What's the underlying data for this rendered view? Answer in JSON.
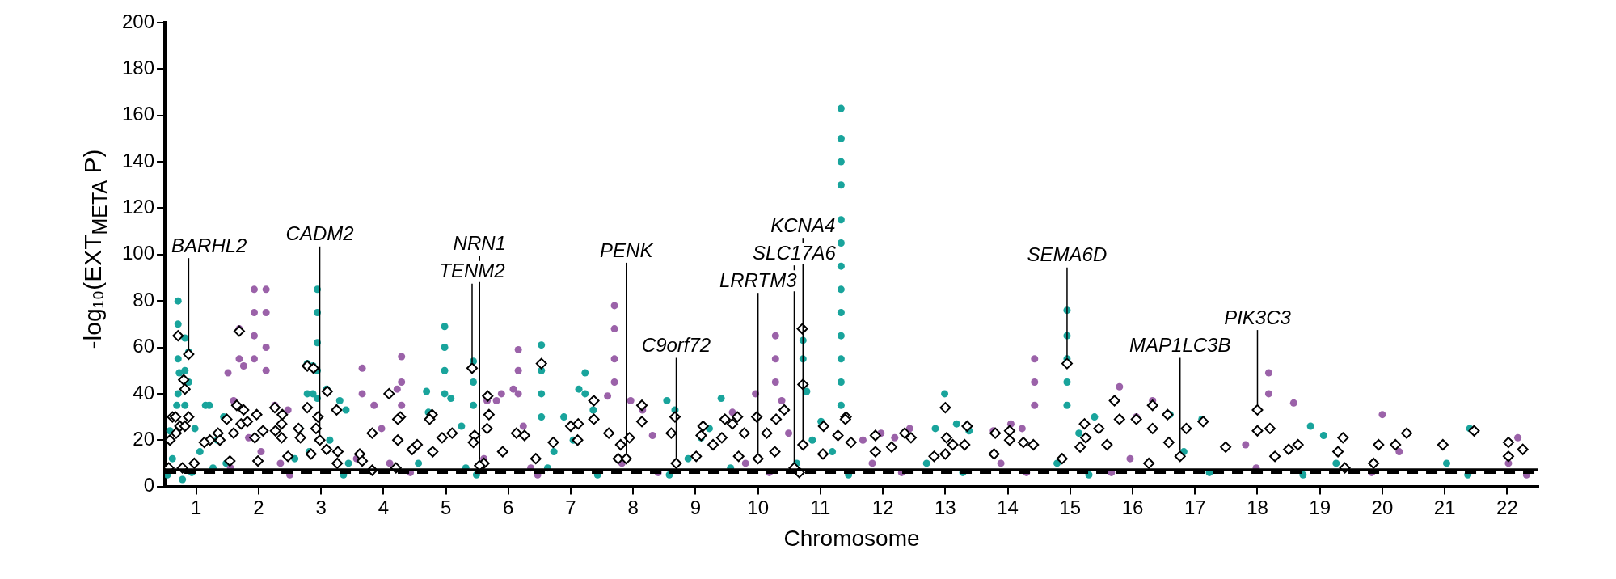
{
  "chart_data": {
    "type": "scatter",
    "xlabel": "Chromosome",
    "ylabel": "-log₁₀(EXT$_{META}$ P)",
    "xlim": [
      0.5,
      22.5
    ],
    "xticks": [
      1,
      2,
      3,
      4,
      5,
      6,
      7,
      8,
      9,
      10,
      11,
      12,
      13,
      14,
      15,
      16,
      17,
      18,
      19,
      20,
      21,
      22
    ],
    "ylim": [
      0,
      200
    ],
    "yticks": [
      0,
      20,
      40,
      60,
      80,
      100,
      120,
      140,
      160,
      180,
      200
    ],
    "grid": false,
    "legend": false,
    "series": [
      {
        "color": "#19a49c",
        "marker": "circle",
        "x": [
          0.71,
          0.71,
          0.71,
          0.71,
          0.82,
          0.82,
          0.82,
          0.88,
          0.88,
          0.73,
          0.69,
          0.98,
          0.58,
          1.15,
          1.21,
          1.44,
          1.34,
          1.06,
          0.62,
          0.54,
          0.78,
          0.93,
          1.27,
          1.48,
          2.94,
          2.94,
          2.94,
          2.94,
          2.94,
          2.78,
          2.78,
          2.87,
          2.87,
          3.09,
          3.3,
          3.4,
          2.66,
          2.58,
          2.81,
          3.14,
          3.44,
          3.36,
          4.98,
          4.98,
          4.98,
          4.98,
          4.69,
          5.08,
          5.25,
          4.72,
          5.44,
          5.44,
          5.44,
          4.56,
          4.77,
          5.32,
          5.49,
          6.53,
          6.53,
          6.53,
          6.53,
          7.23,
          7.23,
          7.13,
          7.36,
          6.89,
          6.73,
          7.04,
          6.63,
          7.43,
          8.54,
          8.67,
          9.41,
          9.22,
          9.09,
          8.88,
          9.56,
          8.58,
          11.33,
          11.33,
          11.33,
          11.33,
          11.33,
          11.33,
          11.33,
          11.33,
          11.33,
          11.33,
          11.33,
          11.33,
          11.33,
          10.72,
          10.72,
          10.78,
          11.01,
          10.87,
          11.19,
          10.62,
          11.45,
          12.99,
          13.18,
          12.84,
          13.38,
          12.7,
          13.28,
          14.95,
          14.95,
          14.95,
          14.95,
          14.95,
          15.39,
          15.14,
          14.79,
          15.3,
          16.6,
          17.11,
          16.82,
          17.23,
          18.85,
          19.06,
          19.26,
          18.73,
          21.4,
          21.03,
          21.37
        ],
        "values": [
          80,
          70,
          55,
          40,
          64,
          50,
          35,
          58,
          45,
          49,
          35,
          25,
          24,
          35,
          35,
          30,
          20,
          15,
          12,
          5,
          3,
          6,
          8,
          10,
          85,
          75,
          62,
          50,
          38,
          53,
          40,
          52,
          40,
          42,
          37,
          33,
          25,
          12,
          15,
          20,
          10,
          5,
          69,
          60,
          50,
          40,
          41,
          38,
          26,
          32,
          54,
          45,
          35,
          10,
          15,
          8,
          5,
          61,
          50,
          40,
          30,
          49,
          40,
          42,
          33,
          30,
          15,
          20,
          8,
          5,
          37,
          33,
          38,
          25,
          21,
          12,
          8,
          5,
          163,
          150,
          140,
          130,
          115,
          105,
          95,
          85,
          75,
          65,
          55,
          45,
          35,
          63,
          55,
          41,
          28,
          20,
          15,
          10,
          5,
          40,
          27,
          25,
          24,
          10,
          6,
          76,
          65,
          55,
          45,
          35,
          30,
          23,
          10,
          5,
          31,
          29,
          15,
          6,
          26,
          22,
          10,
          5,
          25,
          10,
          5
        ]
      },
      {
        "color": "#9b62a9",
        "marker": "circle",
        "x": [
          1.93,
          1.93,
          1.93,
          1.93,
          2.12,
          2.12,
          2.12,
          2.12,
          1.69,
          1.69,
          1.76,
          1.51,
          1.6,
          2.26,
          2.47,
          1.84,
          2.04,
          2.35,
          1.55,
          2.5,
          4.29,
          4.29,
          4.29,
          3.66,
          3.66,
          3.85,
          3.97,
          4.22,
          3.57,
          4.1,
          4.43,
          6.16,
          6.16,
          6.16,
          5.89,
          5.66,
          5.81,
          6.08,
          6.24,
          5.61,
          6.36,
          6.47,
          7.7,
          7.7,
          7.7,
          7.7,
          7.96,
          7.59,
          8.31,
          8.15,
          7.82,
          8.4,
          10.28,
          10.28,
          10.28,
          9.96,
          9.59,
          10.38,
          10.49,
          9.8,
          10.18,
          12.43,
          11.68,
          12.19,
          11.97,
          11.83,
          12.3,
          14.43,
          14.43,
          14.43,
          14.05,
          14.23,
          13.77,
          13.89,
          14.3,
          15.79,
          16.32,
          16.06,
          15.96,
          15.66,
          18.18,
          18.18,
          18.58,
          17.81,
          17.98,
          20.0,
          20.27,
          19.83,
          22.17,
          22.02,
          22.31
        ],
        "values": [
          85,
          75,
          65,
          55,
          85,
          75,
          60,
          50,
          68,
          55,
          52,
          49,
          37,
          35,
          33,
          21,
          15,
          10,
          8,
          5,
          56,
          45,
          35,
          51,
          40,
          35,
          25,
          42,
          12,
          10,
          6,
          59,
          50,
          40,
          40,
          37,
          37,
          42,
          26,
          12,
          8,
          5,
          78,
          68,
          55,
          45,
          37,
          39,
          22,
          33,
          10,
          6,
          65,
          55,
          45,
          40,
          32,
          37,
          23,
          10,
          6,
          25,
          20,
          21,
          23,
          10,
          6,
          55,
          45,
          35,
          27,
          25,
          24,
          10,
          6,
          43,
          37,
          30,
          12,
          6,
          49,
          40,
          36,
          18,
          8,
          31,
          15,
          6,
          21,
          10,
          5
        ]
      },
      {
        "color": "#ffffff",
        "marker": "diamond",
        "x": [
          0.71,
          0.88,
          0.8,
          0.82,
          0.62,
          0.67,
          0.74,
          0.82,
          0.88,
          0.68,
          0.58,
          1.22,
          1.35,
          1.38,
          1.49,
          1.13,
          1.69,
          1.65,
          1.76,
          1.72,
          1.82,
          1.97,
          1.94,
          2.07,
          2.26,
          2.27,
          2.38,
          2.37,
          2.37,
          1.6,
          0.56,
          0.78,
          0.97,
          1.54,
          1.99,
          2.47,
          2.78,
          2.88,
          3.1,
          2.78,
          2.95,
          4.09,
          4.27,
          4.23,
          3.25,
          2.64,
          2.67,
          2.92,
          3.82,
          4.23,
          4.78,
          4.74,
          4.94,
          5.1,
          3.27,
          3.62,
          4.46,
          4.54,
          4.79,
          3.09,
          2.84,
          3.66,
          3.26,
          4.2,
          3.82,
          2.98,
          5.42,
          6.53,
          5.67,
          5.69,
          5.66,
          5.46,
          5.44,
          6.13,
          6.26,
          5.91,
          7.37,
          7.37,
          7.0,
          7.12,
          7.11,
          6.72,
          7.61,
          7.94,
          7.8,
          8.14,
          8.14,
          8.67,
          8.61,
          7.76,
          6.44,
          5.61,
          5.54,
          7.89,
          8.69,
          10.71,
          10.72,
          11.41,
          11.4,
          10.42,
          10.29,
          9.98,
          9.67,
          9.47,
          9.59,
          9.78,
          9.12,
          9.09,
          9.42,
          11.05,
          11.28,
          10.14,
          11.88,
          12.35,
          12.45,
          12.14,
          11.49,
          9.28,
          9.01,
          9.69,
          11.88,
          10.66,
          11.04,
          10.27,
          10.72,
          10.58,
          10.0,
          14.95,
          13.0,
          15.71,
          15.79,
          16.32,
          16.56,
          16.06,
          16.32,
          15.23,
          15.25,
          15.46,
          16.86,
          17.13,
          13.35,
          13.02,
          13.12,
          13.31,
          13.8,
          14.03,
          14.03,
          14.25,
          14.41,
          13.78,
          15.16,
          15.59,
          16.58,
          17.49,
          13.0,
          12.82,
          14.87,
          16.26,
          16.76,
          18.0,
          18.0,
          18.2,
          18.65,
          18.5,
          18.28,
          19.37,
          20.39,
          19.94,
          20.21,
          20.97,
          21.47,
          22.02,
          22.25,
          22.02,
          19.29,
          19.86,
          19.4
        ],
        "values": [
          65,
          57,
          46,
          42,
          30,
          30,
          26,
          26,
          30,
          23,
          20,
          20,
          23,
          20,
          29,
          19,
          67,
          35,
          33,
          27,
          28,
          31,
          21,
          24,
          34,
          24,
          31,
          27,
          21,
          23,
          8,
          8,
          10,
          11,
          11,
          13,
          52,
          51,
          41,
          34,
          30,
          40,
          30,
          29,
          33,
          25,
          21,
          25,
          23,
          20,
          31,
          29,
          21,
          23,
          15,
          14,
          16,
          18,
          15,
          16,
          14,
          11,
          10,
          8,
          7,
          20,
          51,
          53,
          39,
          31,
          25,
          22,
          19,
          23,
          22,
          15,
          37,
          29,
          26,
          27,
          20,
          19,
          23,
          21,
          18,
          35,
          28,
          30,
          23,
          12,
          12,
          10,
          9,
          12,
          10,
          68,
          44,
          30,
          29,
          33,
          29,
          30,
          30,
          29,
          27,
          23,
          26,
          22,
          21,
          26,
          22,
          23,
          22,
          23,
          21,
          17,
          19,
          18,
          13,
          13,
          15,
          6,
          14,
          15,
          18,
          8,
          12,
          53,
          34,
          37,
          29,
          35,
          31,
          29,
          25,
          27,
          21,
          25,
          25,
          28,
          26,
          21,
          18,
          18,
          23,
          24,
          20,
          19,
          18,
          14,
          17,
          18,
          19,
          17,
          14,
          13,
          12,
          10,
          13,
          33,
          24,
          25,
          18,
          16,
          13,
          21,
          23,
          18,
          18,
          18,
          24,
          19,
          16,
          13,
          15,
          10,
          8
        ]
      }
    ],
    "ref_lines": [
      {
        "axis": "y",
        "value": 7.3,
        "line_style": "solid"
      },
      {
        "axis": "y",
        "value": 6,
        "line_style": "dashed"
      }
    ],
    "annotations": [
      {
        "text": "BARHL2",
        "x": 0.88,
        "y": 57
      },
      {
        "text": "CADM2",
        "x": 2.98,
        "y": 20
      },
      {
        "text": "TENM2",
        "x": 5.42,
        "y": 51
      },
      {
        "text": "NRN1",
        "x": 5.54,
        "y": 9
      },
      {
        "text": "PENK",
        "x": 7.89,
        "y": 12
      },
      {
        "text": "C9orf72",
        "x": 8.69,
        "y": 10
      },
      {
        "text": "LRRTM3",
        "x": 10.0,
        "y": 12
      },
      {
        "text": "SLC17A6",
        "x": 10.58,
        "y": 8
      },
      {
        "text": "KCNA4",
        "x": 10.72,
        "y": 18
      },
      {
        "text": "SEMA6D",
        "x": 14.95,
        "y": 53
      },
      {
        "text": "MAP1LC3B",
        "x": 16.76,
        "y": 13
      },
      {
        "text": "PIK3C3",
        "x": 18.0,
        "y": 33
      }
    ]
  }
}
